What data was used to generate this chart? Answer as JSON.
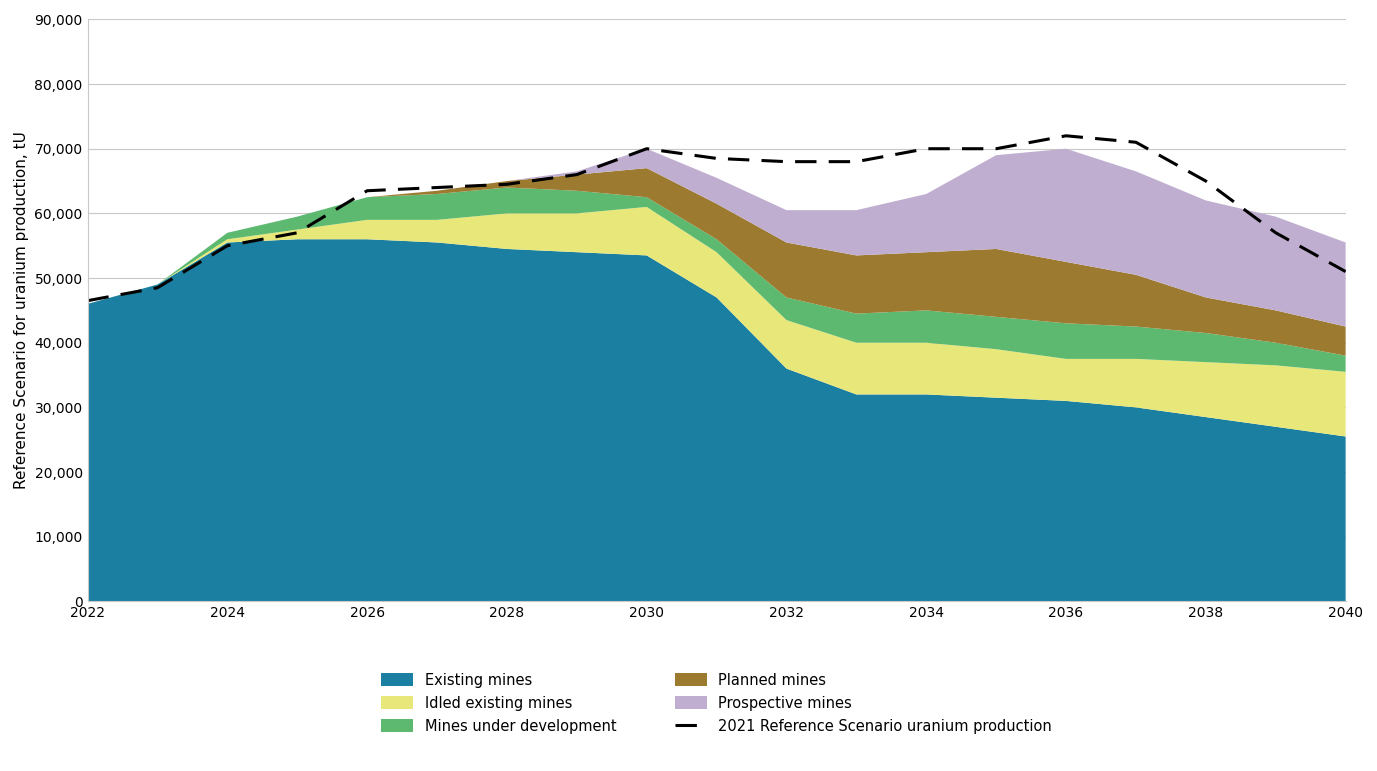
{
  "years": [
    2022,
    2023,
    2024,
    2025,
    2026,
    2027,
    2028,
    2029,
    2030,
    2031,
    2032,
    2033,
    2034,
    2035,
    2036,
    2037,
    2038,
    2039,
    2040
  ],
  "existing_mines": [
    46000,
    49000,
    55500,
    56000,
    56000,
    55500,
    54500,
    54000,
    53500,
    47000,
    36000,
    32000,
    32000,
    31500,
    31000,
    30000,
    28500,
    27000,
    25500
  ],
  "idled_existing_mines": [
    0,
    0,
    500,
    1500,
    3000,
    3500,
    5500,
    6000,
    7500,
    7000,
    7500,
    8000,
    8000,
    7500,
    6500,
    7500,
    8500,
    9500,
    10000
  ],
  "mines_under_development": [
    0,
    0,
    1000,
    2000,
    3500,
    4000,
    4000,
    3500,
    1500,
    2000,
    3500,
    4500,
    5000,
    5000,
    5500,
    5000,
    4500,
    3500,
    2500
  ],
  "planned_mines": [
    0,
    0,
    0,
    0,
    0,
    500,
    1000,
    2500,
    4500,
    5500,
    8500,
    9000,
    9000,
    10500,
    9500,
    8000,
    5500,
    5000,
    4500
  ],
  "prospective_mines": [
    0,
    0,
    0,
    0,
    0,
    0,
    0,
    500,
    3000,
    4000,
    5000,
    7000,
    9000,
    14500,
    17500,
    16000,
    15000,
    14500,
    13000
  ],
  "reference_2021": [
    46500,
    48500,
    55000,
    57000,
    63500,
    64000,
    64500,
    66000,
    70000,
    68500,
    68000,
    68000,
    70000,
    70000,
    72000,
    71000,
    65000,
    57000,
    51000
  ],
  "colors": {
    "existing_mines": "#1a7fa0",
    "idled_existing_mines": "#e8e87a",
    "mines_under_development": "#5db870",
    "planned_mines": "#9c7a30",
    "prospective_mines": "#c0aed0"
  },
  "ylabel": "Reference Scenario for uranium production, tU",
  "ylim": [
    0,
    90000
  ],
  "yticks": [
    0,
    10000,
    20000,
    30000,
    40000,
    50000,
    60000,
    70000,
    80000,
    90000
  ],
  "xlim": [
    2022,
    2040
  ],
  "xticks": [
    2022,
    2024,
    2026,
    2028,
    2030,
    2032,
    2034,
    2036,
    2038,
    2040
  ],
  "legend_labels": {
    "existing_mines": "Existing mines",
    "idled_existing_mines": "Idled existing mines",
    "mines_under_development": "Mines under development",
    "planned_mines": "Planned mines",
    "prospective_mines": "Prospective mines",
    "reference_2021": "2021 Reference Scenario uranium production"
  },
  "background_color": "#ffffff",
  "grid_color": "#c8c8c8"
}
